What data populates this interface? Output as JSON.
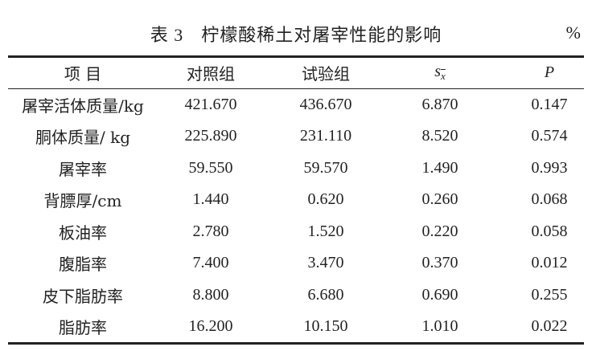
{
  "caption": {
    "number": "表 3",
    "text": "柠檬酸稀土对屠宰性能的影响",
    "unit": "%"
  },
  "table": {
    "headers": [
      "项 目",
      "对照组",
      "试验组",
      "s",
      "P"
    ],
    "sd_subscript": "x",
    "rows": [
      [
        "屠宰活体质量/kg",
        "421.670",
        "436.670",
        "6.870",
        "0.147"
      ],
      [
        "胴体质量/ kg",
        "225.890",
        "231.110",
        "8.520",
        "0.574"
      ],
      [
        "屠宰率",
        "59.550",
        "59.570",
        "1.490",
        "0.993"
      ],
      [
        "背膘厚/cm",
        "1.440",
        "0.620",
        "0.260",
        "0.068"
      ],
      [
        "板油率",
        "2.780",
        "1.520",
        "0.220",
        "0.058"
      ],
      [
        "腹脂率",
        "7.400",
        "3.470",
        "0.370",
        "0.012"
      ],
      [
        "皮下脂肪率",
        "8.800",
        "6.680",
        "0.690",
        "0.255"
      ],
      [
        "脂肪率",
        "16.200",
        "10.150",
        "1.010",
        "0.022"
      ]
    ]
  }
}
